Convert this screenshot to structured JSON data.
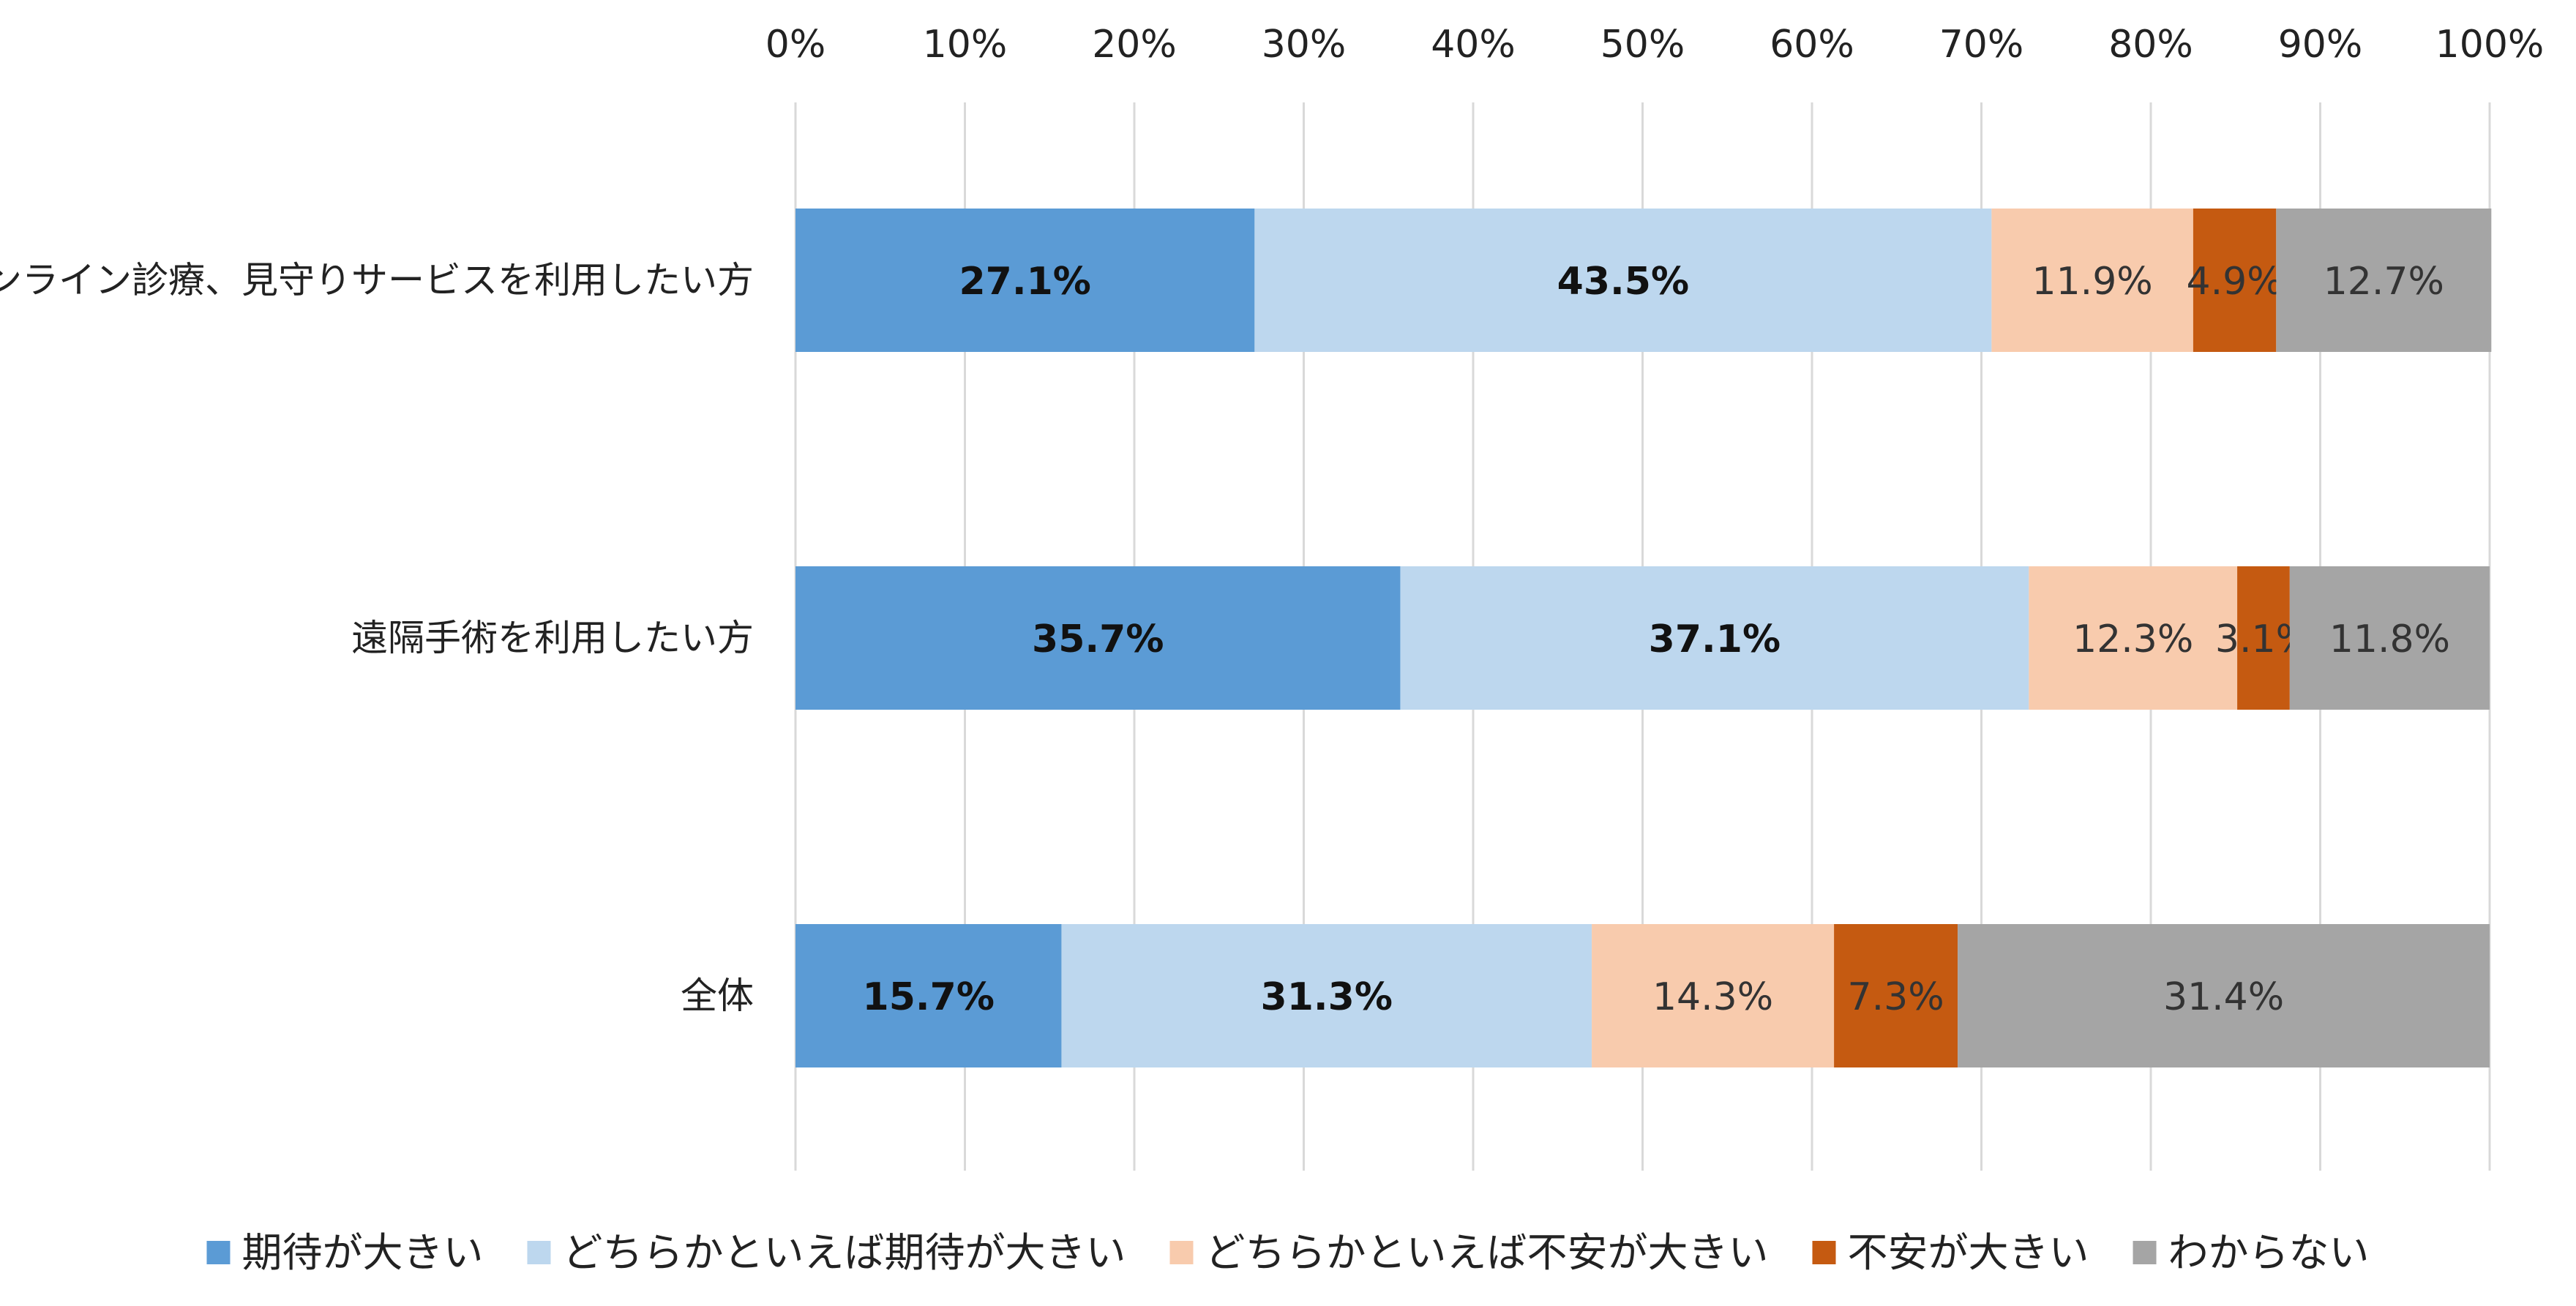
{
  "chart_data": {
    "type": "bar",
    "orientation": "horizontal",
    "stacked": "percent",
    "xlim": [
      0,
      100
    ],
    "ticks": [
      "0%",
      "10%",
      "20%",
      "30%",
      "40%",
      "50%",
      "60%",
      "70%",
      "80%",
      "90%",
      "100%"
    ],
    "tick_values": [
      0,
      10,
      20,
      30,
      40,
      50,
      60,
      70,
      80,
      90,
      100
    ],
    "grid": "vertical",
    "legend_position": "bottom",
    "categories": [
      "オンライン診療、見守りサービスを利用したい方",
      "遠隔手術を利用したい方",
      "全体"
    ],
    "series": [
      {
        "name": "期待が大きい",
        "color": "#5B9BD5",
        "label_color": "#111111",
        "bold": true,
        "values": [
          27.1,
          35.7,
          15.7
        ],
        "labels": [
          "27.1%",
          "35.7%",
          "15.7%"
        ]
      },
      {
        "name": "どちらかといえば期待が大きい",
        "color": "#BDD7EE",
        "label_color": "#111111",
        "bold": true,
        "values": [
          43.5,
          37.1,
          31.3
        ],
        "labels": [
          "43.5%",
          "37.1%",
          "31.3%"
        ]
      },
      {
        "name": "どちらかといえば不安が大きい",
        "color": "#F8CBAD",
        "label_color": "#333333",
        "bold": false,
        "values": [
          11.9,
          12.3,
          14.3
        ],
        "labels": [
          "11.9%",
          "12.3%",
          "14.3%"
        ]
      },
      {
        "name": "不安が大きい",
        "color": "#C55A11",
        "label_color": "#333333",
        "bold": false,
        "values": [
          4.9,
          3.1,
          7.3
        ],
        "labels": [
          "4.9%",
          "3.1%",
          "7.3%"
        ]
      },
      {
        "name": "わからない",
        "color": "#A5A5A5",
        "label_color": "#333333",
        "bold": false,
        "values": [
          12.7,
          11.8,
          31.4
        ],
        "labels": [
          "12.7%",
          "11.8%",
          "31.4%"
        ]
      }
    ],
    "colors": {
      "grid": "#D9D9D9"
    }
  }
}
